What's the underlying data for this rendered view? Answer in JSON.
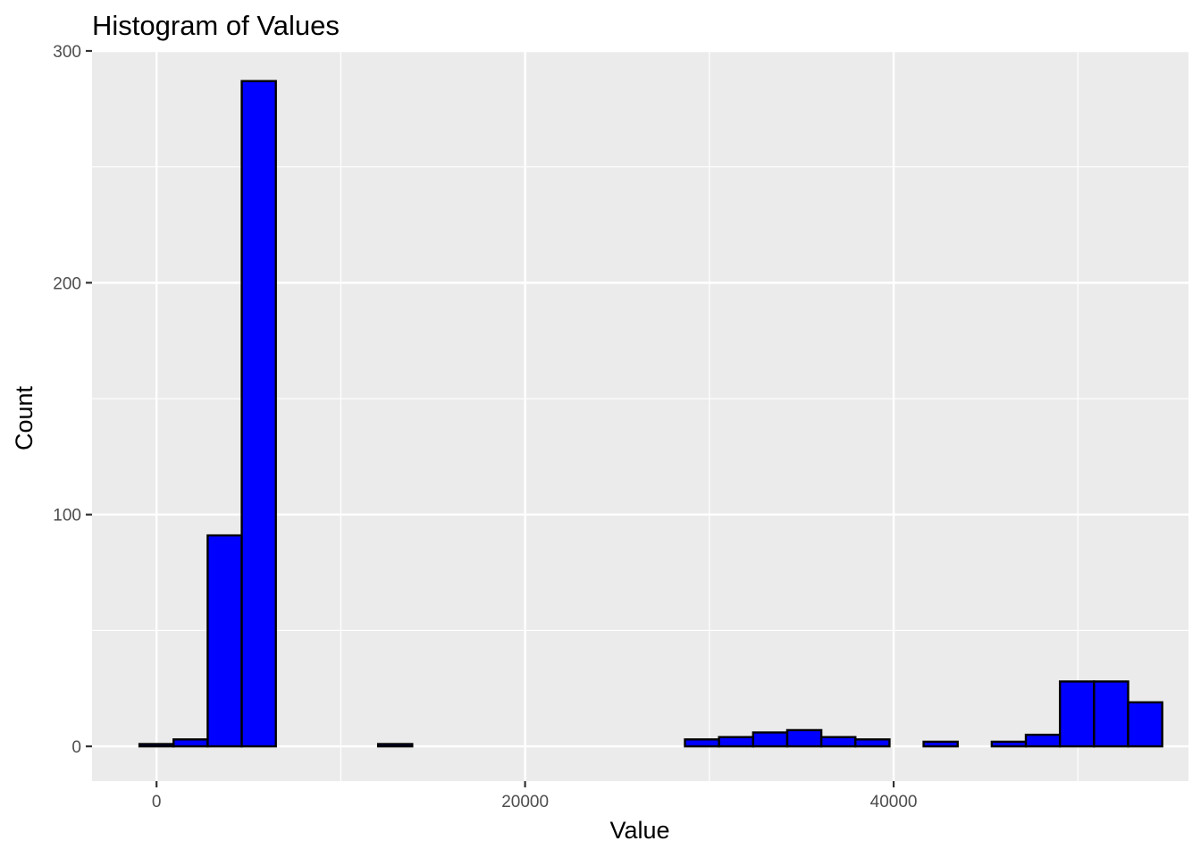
{
  "chart_data": {
    "type": "bar",
    "subtype": "histogram",
    "title": "Histogram of Values",
    "xlabel": "Value",
    "ylabel": "Count",
    "xlim": [
      -3500,
      56000
    ],
    "ylim": [
      -15,
      300
    ],
    "x_ticks": [
      0,
      20000,
      40000
    ],
    "x_tick_labels": [
      "0",
      "20000",
      "40000"
    ],
    "y_ticks": [
      0,
      100,
      200,
      300
    ],
    "y_tick_labels": [
      "0",
      "100",
      "200",
      "300"
    ],
    "grid": true,
    "bin_width": 1850,
    "bars": [
      {
        "x0": -925,
        "x1": 925,
        "count": 1
      },
      {
        "x0": 925,
        "x1": 2775,
        "count": 3
      },
      {
        "x0": 2775,
        "x1": 4625,
        "count": 91
      },
      {
        "x0": 4625,
        "x1": 6475,
        "count": 287
      },
      {
        "x0": 6475,
        "x1": 8325,
        "count": 0
      },
      {
        "x0": 8325,
        "x1": 10175,
        "count": 0
      },
      {
        "x0": 10175,
        "x1": 12025,
        "count": 0
      },
      {
        "x0": 12025,
        "x1": 13875,
        "count": 1
      },
      {
        "x0": 13875,
        "x1": 15725,
        "count": 0
      },
      {
        "x0": 15725,
        "x1": 17575,
        "count": 0
      },
      {
        "x0": 17575,
        "x1": 19425,
        "count": 0
      },
      {
        "x0": 19425,
        "x1": 21275,
        "count": 0
      },
      {
        "x0": 21275,
        "x1": 23125,
        "count": 0
      },
      {
        "x0": 23125,
        "x1": 24975,
        "count": 0
      },
      {
        "x0": 24975,
        "x1": 26825,
        "count": 0
      },
      {
        "x0": 26825,
        "x1": 28675,
        "count": 0
      },
      {
        "x0": 28675,
        "x1": 30525,
        "count": 3
      },
      {
        "x0": 30525,
        "x1": 32375,
        "count": 4
      },
      {
        "x0": 32375,
        "x1": 34225,
        "count": 6
      },
      {
        "x0": 34225,
        "x1": 36075,
        "count": 7
      },
      {
        "x0": 36075,
        "x1": 37925,
        "count": 4
      },
      {
        "x0": 37925,
        "x1": 39775,
        "count": 3
      },
      {
        "x0": 39775,
        "x1": 41625,
        "count": 0
      },
      {
        "x0": 41625,
        "x1": 43475,
        "count": 2
      },
      {
        "x0": 43475,
        "x1": 45325,
        "count": 0
      },
      {
        "x0": 45325,
        "x1": 47175,
        "count": 2
      },
      {
        "x0": 47175,
        "x1": 49025,
        "count": 5
      },
      {
        "x0": 49025,
        "x1": 50875,
        "count": 28
      },
      {
        "x0": 50875,
        "x1": 52725,
        "count": 28
      },
      {
        "x0": 52725,
        "x1": 54575,
        "count": 19
      }
    ],
    "colors": {
      "bar_fill": "#0000ff",
      "bar_outline": "#000000",
      "panel_background": "#ebebeb",
      "grid_line": "#ffffff"
    }
  }
}
